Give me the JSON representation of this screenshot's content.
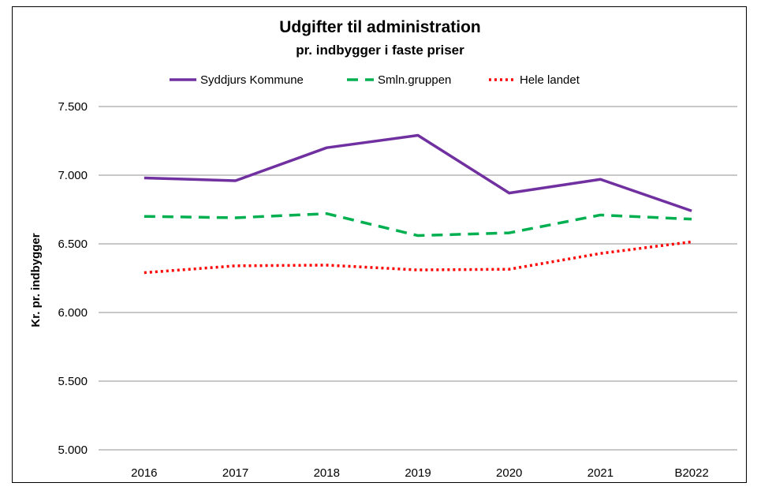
{
  "chart_data": {
    "type": "line",
    "title": "Udgifter til administration",
    "subtitle": "pr. indbygger i faste priser",
    "xlabel": "",
    "ylabel": "Kr. pr. indbygger",
    "categories": [
      "2016",
      "2017",
      "2018",
      "2019",
      "2020",
      "2021",
      "B2022"
    ],
    "ylim": [
      5000,
      7500
    ],
    "yticks": [
      5000,
      5500,
      6000,
      6500,
      7000,
      7500
    ],
    "ytick_labels": [
      "5.000",
      "5.500",
      "6.000",
      "6.500",
      "7.000",
      "7.500"
    ],
    "grid": true,
    "legend_position": "top",
    "series": [
      {
        "name": "Syddjurs Kommune",
        "color": "#7030A0",
        "style": "solid",
        "values": [
          6980,
          6960,
          7200,
          7290,
          6870,
          6970,
          6740
        ]
      },
      {
        "name": "Smln.gruppen",
        "color": "#00B050",
        "style": "dashed",
        "values": [
          6700,
          6690,
          6720,
          6560,
          6580,
          6710,
          6680
        ]
      },
      {
        "name": "Hele landet",
        "color": "#FF0000",
        "style": "dotted",
        "values": [
          6290,
          6340,
          6345,
          6310,
          6315,
          6430,
          6515
        ]
      }
    ]
  }
}
